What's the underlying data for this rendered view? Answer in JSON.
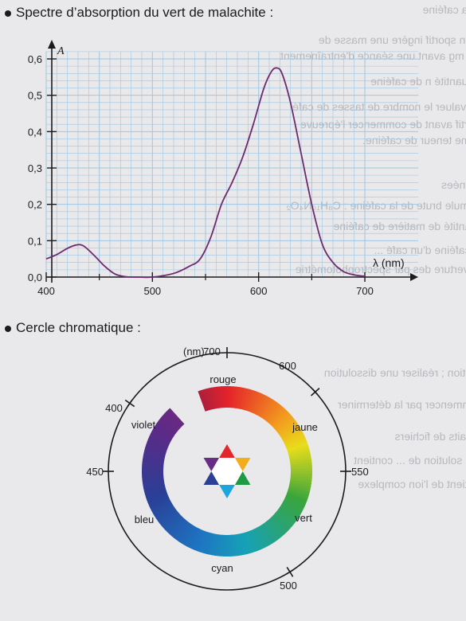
{
  "titles": {
    "spectrum": "Spectre d’absorption du vert de malachite :",
    "circle": "Cercle chromatique :"
  },
  "chart_data": [
    {
      "type": "line",
      "title": "Spectre d’absorption du vert de malachite",
      "xlabel": "λ (nm)",
      "ylabel": "A",
      "xlim": [
        400,
        720
      ],
      "ylim": [
        0,
        0.62
      ],
      "x_ticks": [
        400,
        500,
        600,
        700
      ],
      "x_minor_ticks": [
        450,
        550,
        650
      ],
      "y_ticks": [
        "0,0",
        "0,1",
        "0,2",
        "0,3",
        "0,4",
        "0,5",
        "0,6"
      ],
      "grid": true,
      "series": [
        {
          "color": "#6d2a6e",
          "x": [
            400,
            410,
            420,
            428,
            435,
            445,
            455,
            465,
            475,
            485,
            500,
            520,
            535,
            545,
            555,
            565,
            575,
            585,
            595,
            605,
            612,
            617,
            622,
            630,
            640,
            650,
            660,
            670,
            680,
            690,
            700
          ],
          "y": [
            0.05,
            0.062,
            0.079,
            0.088,
            0.086,
            0.06,
            0.03,
            0.008,
            0.001,
            0.0,
            0.0,
            0.01,
            0.03,
            0.05,
            0.11,
            0.2,
            0.26,
            0.33,
            0.42,
            0.52,
            0.565,
            0.575,
            0.56,
            0.48,
            0.34,
            0.2,
            0.09,
            0.04,
            0.015,
            0.006,
            0.002
          ]
        }
      ]
    },
    {
      "type": "pie",
      "title": "Cercle chromatique",
      "unit_label": "(nm)",
      "wavelength_marks": [
        "700",
        "600",
        "550",
        "500",
        "450",
        "400"
      ],
      "color_names": [
        "rouge",
        "jaune",
        "vert",
        "cyan",
        "bleu",
        "violet"
      ],
      "star_colors": [
        "#e3262c",
        "#f1ad1b",
        "#1e9a45",
        "#1ba6df",
        "#2a3f96",
        "#6a2d86"
      ]
    }
  ]
}
